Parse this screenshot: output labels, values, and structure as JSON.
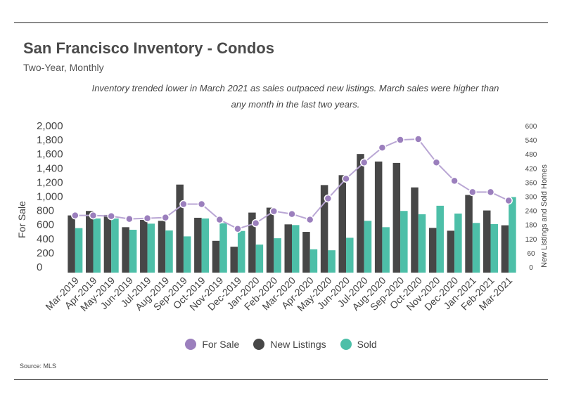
{
  "title": "San Francisco Inventory - Condos",
  "subtitle": "Two-Year, Monthly",
  "caption": "Inventory trended lower in March 2021 as sales outpaced new listings. March sales were higher than any month in the last two years.",
  "source": "Source:  MLS",
  "colors": {
    "for_sale": "#9b7fbd",
    "new_listings": "#474747",
    "sold": "#4dbfa8"
  },
  "chart_data": {
    "type": "bar",
    "categories": [
      "Mar-2019",
      "Apr-2019",
      "May-2019",
      "Jun-2019",
      "Jul-2019",
      "Aug-2019",
      "Sep-2019",
      "Oct-2019",
      "Nov-2019",
      "Dec-2019",
      "Jan-2020",
      "Feb-2020",
      "Mar-2020",
      "Apr-2020",
      "May-2020",
      "Jun-2020",
      "Jul-2020",
      "Aug-2020",
      "Sep-2020",
      "Oct-2020",
      "Nov-2020",
      "Dec-2020",
      "Jan-2021",
      "Feb-2021",
      "Mar-2021"
    ],
    "series": [
      {
        "name": "New Listings",
        "type": "bar",
        "axis": "right",
        "values": [
          243,
          262,
          245,
          193,
          224,
          220,
          374,
          233,
          135,
          110,
          255,
          276,
          205,
          173,
          372,
          414,
          504,
          472,
          466,
          362,
          190,
          178,
          330,
          264,
          201
        ]
      },
      {
        "name": "Sold",
        "type": "bar",
        "axis": "right",
        "values": [
          189,
          230,
          230,
          182,
          208,
          179,
          154,
          230,
          210,
          177,
          119,
          146,
          202,
          99,
          95,
          148,
          220,
          193,
          262,
          248,
          284,
          251,
          211,
          206,
          321
        ]
      },
      {
        "name": "For Sale",
        "type": "line",
        "axis": "left",
        "values": [
          810,
          810,
          800,
          760,
          770,
          780,
          970,
          970,
          750,
          620,
          700,
          870,
          830,
          750,
          1050,
          1330,
          1560,
          1770,
          1880,
          1890,
          1560,
          1300,
          1140,
          1140,
          1020
        ]
      }
    ],
    "yleft": {
      "label": "For Sale",
      "range": [
        0,
        2000
      ],
      "ticks": [
        "0",
        "200",
        "400",
        "600",
        "800",
        "1,000",
        "1,200",
        "1,400",
        "1,600",
        "1,800",
        "2,000"
      ]
    },
    "yright": {
      "label": "New Listings and Sold Homes",
      "range": [
        0,
        600
      ],
      "ticks": [
        "0",
        "60",
        "120",
        "180",
        "240",
        "300",
        "360",
        "420",
        "480",
        "540",
        "600"
      ]
    },
    "legend": [
      "For Sale",
      "New Listings",
      "Sold"
    ],
    "legend_position": "bottom",
    "grid": false
  }
}
